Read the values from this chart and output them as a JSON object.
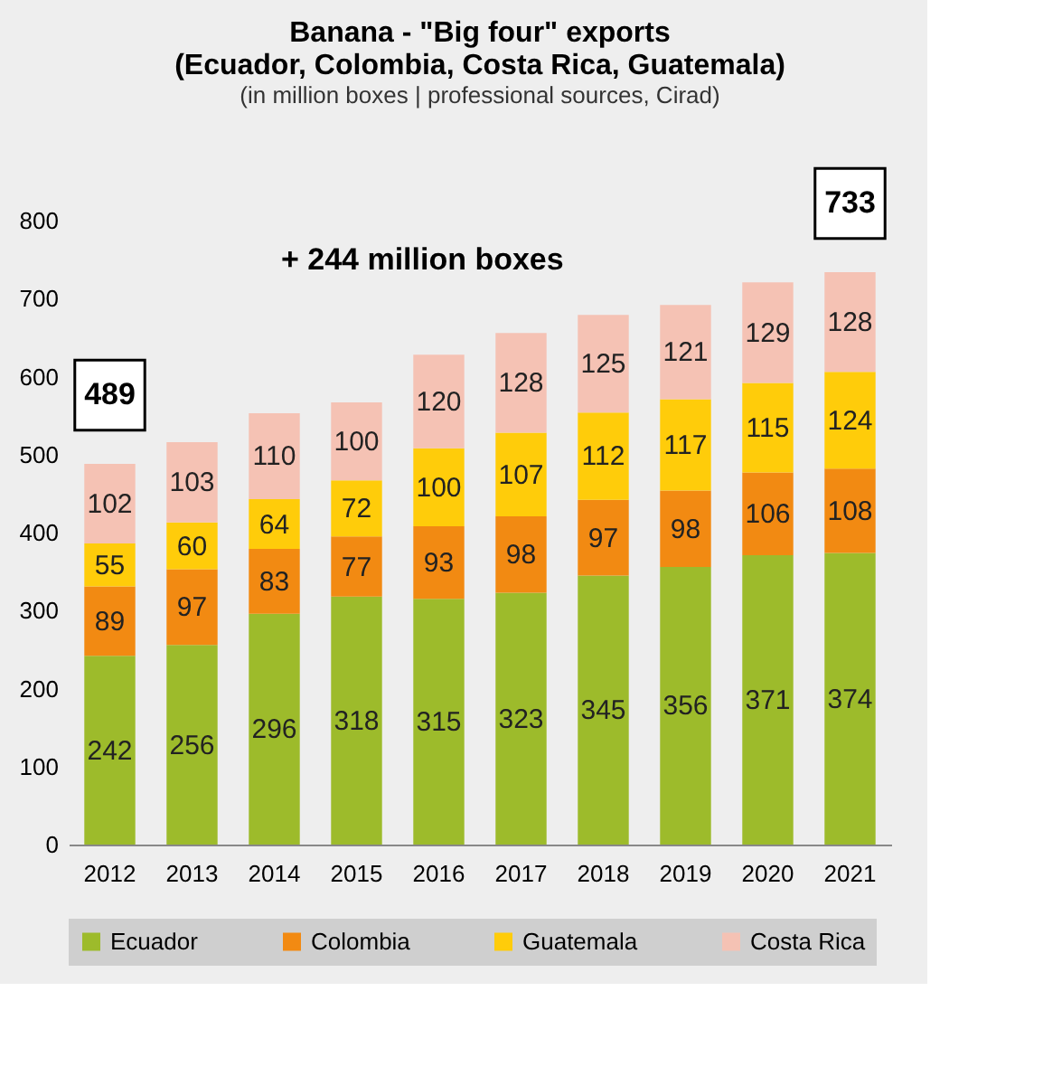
{
  "chart_data": {
    "type": "bar",
    "title": "Banana - \"Big four\" exports",
    "subtitle": "(Ecuador, Colombia, Costa Rica, Guatemala)",
    "annotations": [
      "(in million boxes | professional sources, Cirad)",
      "+ 244 million boxes"
    ],
    "categories": [
      "2012",
      "2013",
      "2014",
      "2015",
      "2016",
      "2017",
      "2018",
      "2019",
      "2020",
      "2021"
    ],
    "series": [
      {
        "name": "Ecuador",
        "color": "#9dbb2b",
        "values": [
          242,
          256,
          296,
          318,
          315,
          323,
          345,
          356,
          371,
          374
        ]
      },
      {
        "name": "Colombia",
        "color": "#f28a12",
        "values": [
          89,
          97,
          83,
          77,
          93,
          98,
          97,
          98,
          106,
          108
        ]
      },
      {
        "name": "Guatemala",
        "color": "#ffcc0a",
        "values": [
          55,
          60,
          64,
          72,
          100,
          107,
          112,
          117,
          115,
          124
        ]
      },
      {
        "name": "Costa Rica",
        "color": "#f5c2b4",
        "values": [
          102,
          103,
          110,
          100,
          120,
          128,
          125,
          121,
          129,
          128
        ]
      }
    ],
    "stacked": true,
    "data_labels": true,
    "totals": [
      "489",
      null,
      null,
      null,
      null,
      null,
      null,
      null,
      null,
      "733"
    ],
    "ylim": [
      0,
      800
    ],
    "yticks": [
      0,
      100,
      200,
      300,
      400,
      500,
      600,
      700,
      800
    ],
    "legend": "bottom",
    "grid": false
  }
}
